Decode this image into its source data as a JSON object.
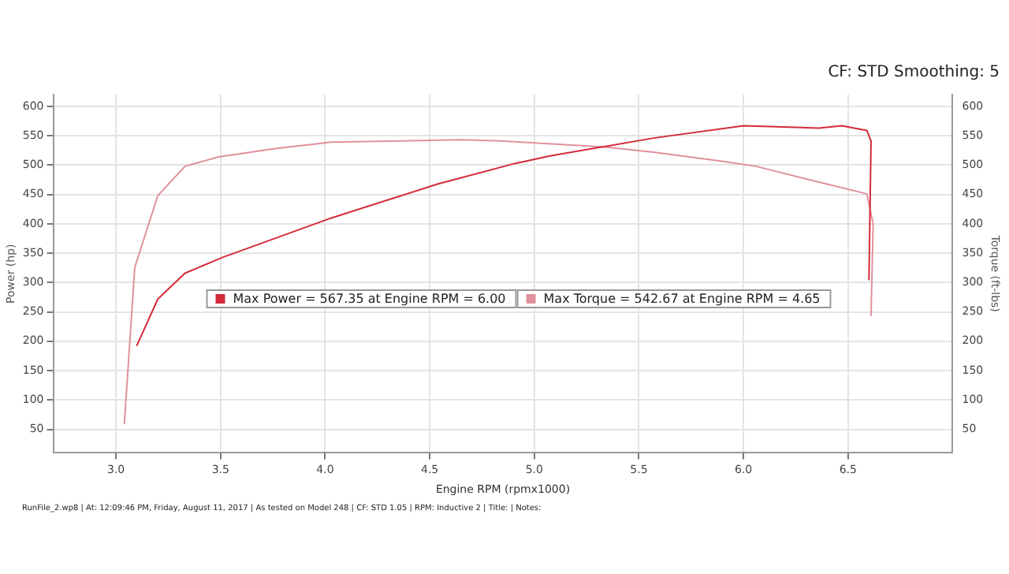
{
  "chart_data": {
    "type": "line",
    "xlabel": "Engine RPM (rpmx1000)",
    "ylabel": "Power (hp)",
    "y2label": "Torque (ft-lbs)",
    "xlim": [
      2.7,
      7.0
    ],
    "xticks": [
      {
        "value": 3,
        "label": "3.0"
      },
      {
        "value": 3.5,
        "label": "3.5"
      },
      {
        "value": 4,
        "label": "4.0"
      },
      {
        "value": 4.5,
        "label": "4.5"
      },
      {
        "value": 5,
        "label": "5.0"
      },
      {
        "value": 5.5,
        "label": "5.5"
      },
      {
        "value": 6,
        "label": "6.0"
      },
      {
        "value": 6.5,
        "label": "6.5"
      }
    ],
    "ylim": [
      10,
      620
    ],
    "yticks": [
      50,
      100,
      150,
      200,
      250,
      300,
      350,
      400,
      450,
      500,
      550,
      600
    ],
    "y2lim": [
      10,
      620
    ],
    "y2ticks": [
      50,
      100,
      150,
      200,
      250,
      300,
      350,
      400,
      450,
      500,
      550,
      600
    ],
    "series": [
      {
        "name": "Max Power = 567.35 at Engine RPM = 6.00",
        "color": "#d42a3a",
        "x": [
          3.1,
          3.2,
          3.33,
          3.51,
          4.03,
          4.54,
          4.91,
          5.08,
          5.57,
          6.0,
          6.36,
          6.47,
          6.59,
          6.61,
          6.6
        ],
        "values": [
          193,
          272,
          316,
          343,
          410,
          468,
          503,
          516,
          546,
          567,
          563,
          567,
          559,
          541,
          305
        ]
      },
      {
        "name": "Max Torque = 542.67 at Engine RPM = 4.65",
        "color": "#e0919c",
        "axis": "y2",
        "x": [
          3.04,
          3.09,
          3.2,
          3.33,
          3.49,
          3.76,
          4.03,
          4.65,
          4.84,
          5.33,
          5.57,
          5.89,
          6.06,
          6.35,
          6.59,
          6.62,
          6.61
        ],
        "values": [
          60,
          326,
          448,
          498,
          514,
          528,
          539,
          543,
          541,
          531,
          522,
          507,
          498,
          472,
          451,
          400,
          244
        ]
      }
    ],
    "grid": true,
    "legend": "center",
    "marker": "none",
    "line_style": "solid",
    "annotations": [
      "CF: STD Smoothing: 5",
      "RunFile_2.wp8 | At: 12:09:46 PM, Friday, August 11, 2017 | As tested on Model 248 | CF: STD 1.05 | RPM: Inductive 2 | Title: | Notes:"
    ]
  }
}
